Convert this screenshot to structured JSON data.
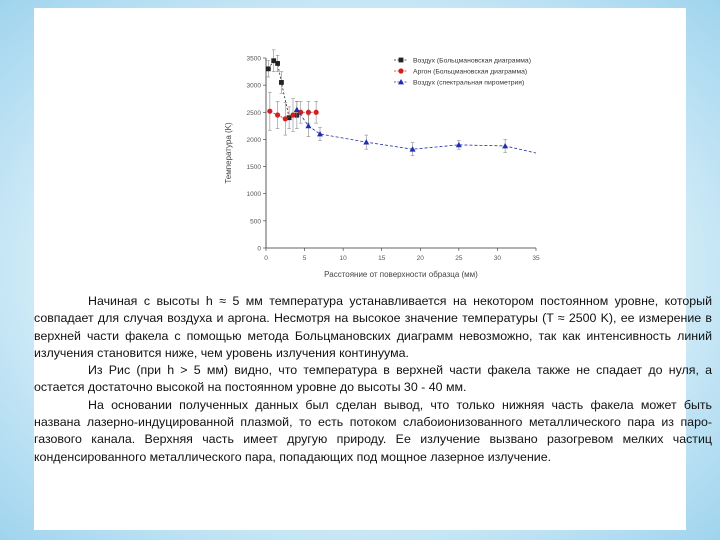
{
  "chart_data": {
    "type": "scatter",
    "xlabel": "Расстояние от поверхности образца (мм)",
    "ylabel": "Температура (K)",
    "xlim": [
      0,
      35
    ],
    "ylim": [
      0,
      3500
    ],
    "xticks": [
      0,
      5,
      10,
      15,
      20,
      25,
      30,
      35
    ],
    "yticks": [
      0,
      500,
      1000,
      1500,
      2000,
      2500,
      3000,
      3500
    ],
    "legend_position": "top-right",
    "series": [
      {
        "name": "Воздух (Больцмановская диаграмма)",
        "color": "#222222",
        "marker": "square",
        "points": [
          {
            "x": 0.3,
            "y": 3300,
            "err": 150
          },
          {
            "x": 1.0,
            "y": 3450,
            "err": 200
          },
          {
            "x": 1.5,
            "y": 3400,
            "err": 150
          },
          {
            "x": 2.0,
            "y": 3050,
            "err": 200
          },
          {
            "x": 3.0,
            "y": 2400,
            "err": 200
          },
          {
            "x": 4.0,
            "y": 2450,
            "err": 250
          }
        ]
      },
      {
        "name": "Аргон (Больцмановская диаграмма)",
        "color": "#d22020",
        "marker": "circle",
        "points": [
          {
            "x": 0.5,
            "y": 2520,
            "err": 350
          },
          {
            "x": 1.5,
            "y": 2450,
            "err": 250
          },
          {
            "x": 2.5,
            "y": 2380,
            "err": 300
          },
          {
            "x": 3.5,
            "y": 2450,
            "err": 300
          },
          {
            "x": 4.5,
            "y": 2500,
            "err": 200
          },
          {
            "x": 5.5,
            "y": 2500,
            "err": 200
          },
          {
            "x": 6.5,
            "y": 2500,
            "err": 200
          }
        ]
      },
      {
        "name": "Воздух (спектральная пирометрия)",
        "color": "#1e2fb0",
        "marker": "triangle",
        "points": [
          {
            "x": 4.0,
            "y": 2550,
            "err": 150
          },
          {
            "x": 5.5,
            "y": 2250,
            "err": 200
          },
          {
            "x": 7.0,
            "y": 2100,
            "err": 120
          },
          {
            "x": 13.0,
            "y": 1950,
            "err": 130
          },
          {
            "x": 19.0,
            "y": 1820,
            "err": 120
          },
          {
            "x": 25.0,
            "y": 1900,
            "err": 80
          },
          {
            "x": 31.0,
            "y": 1880,
            "err": 120
          }
        ],
        "trend": [
          [
            4,
            2550
          ],
          [
            5.5,
            2250
          ],
          [
            7,
            2100
          ],
          [
            13,
            1950
          ],
          [
            19,
            1820
          ],
          [
            25,
            1900
          ],
          [
            31,
            1880
          ],
          [
            35,
            1750
          ]
        ]
      }
    ]
  },
  "text": {
    "p1": "Начиная с высоты h ≈ 5 мм температура устанавливается на некотором постоянном уровне, который совпадает для случая воздуха и аргона. Несмотря на высокое значение температуры (T ≈ 2500 K), ее измерение в верхней части факела с помощью метода Больцмановских диаграмм невозможно, так как интенсивность линий излучения становится ниже, чем уровень излучения континуума.",
    "p2": "Из Рис (при h > 5 мм) видно, что температура в верхней части факела также не спадает до нуля, а остается достаточно высокой на постоянном уровне до высоты 30 - 40 мм.",
    "p3": "На основании полученных данных был сделан вывод, что только нижняя часть факела может быть названа лазерно-индуцированной плазмой, то есть потоком слабоионизованного металлического пара из паро-газового канала. Верхняя часть имеет другую природу. Ее излучение вызвано разогревом мелких частиц конденсированного металлического пара, попадающих под мощное лазерное излучение."
  }
}
